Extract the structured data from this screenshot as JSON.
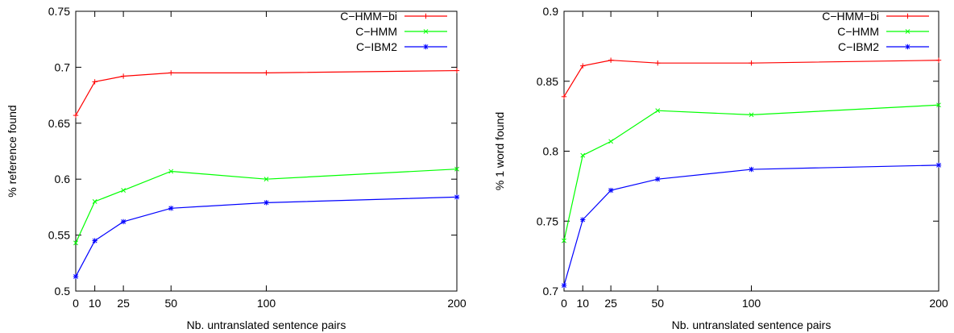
{
  "chart_data": [
    {
      "type": "line",
      "xlabel": "Nb. untranslated sentence pairs",
      "ylabel": "% reference found",
      "x": [
        0,
        10,
        25,
        50,
        100,
        200
      ],
      "xticks": [
        0,
        10,
        25,
        50,
        100,
        200
      ],
      "xlim": [
        0,
        200
      ],
      "ylim": [
        0.5,
        0.75
      ],
      "yticks": [
        0.5,
        0.55,
        0.6,
        0.65,
        0.7,
        0.75
      ],
      "ytick_labels": [
        "0.5",
        "0.55",
        "0.6",
        "0.65",
        "0.7",
        "0.75"
      ],
      "legend_position": "top-right",
      "grid": false,
      "series": [
        {
          "name": "C−HMM−bi",
          "color": "#ff0000",
          "marker": "plus",
          "values": [
            0.657,
            0.687,
            0.692,
            0.695,
            0.695,
            0.697
          ]
        },
        {
          "name": "C−HMM",
          "color": "#00ff00",
          "marker": "cross",
          "values": [
            0.543,
            0.58,
            0.59,
            0.607,
            0.6,
            0.609
          ]
        },
        {
          "name": "C−IBM2",
          "color": "#0000ff",
          "marker": "star",
          "values": [
            0.513,
            0.545,
            0.562,
            0.574,
            0.579,
            0.584
          ]
        }
      ]
    },
    {
      "type": "line",
      "xlabel": "Nb. untranslated sentence pairs",
      "ylabel": "% 1 word found",
      "x": [
        0,
        10,
        25,
        50,
        100,
        200
      ],
      "xticks": [
        0,
        10,
        25,
        50,
        100,
        200
      ],
      "xlim": [
        0,
        200
      ],
      "ylim": [
        0.7,
        0.9
      ],
      "yticks": [
        0.7,
        0.75,
        0.8,
        0.85,
        0.9
      ],
      "ytick_labels": [
        "0.7",
        "0.75",
        "0.8",
        "0.85",
        "0.9"
      ],
      "legend_position": "top-right",
      "grid": false,
      "series": [
        {
          "name": "C−HMM−bi",
          "color": "#ff0000",
          "marker": "plus",
          "values": [
            0.839,
            0.861,
            0.865,
            0.863,
            0.863,
            0.865
          ]
        },
        {
          "name": "C−HMM",
          "color": "#00ff00",
          "marker": "cross",
          "values": [
            0.736,
            0.797,
            0.807,
            0.829,
            0.826,
            0.833
          ]
        },
        {
          "name": "C−IBM2",
          "color": "#0000ff",
          "marker": "star",
          "values": [
            0.704,
            0.751,
            0.772,
            0.78,
            0.787,
            0.79
          ]
        }
      ]
    }
  ]
}
